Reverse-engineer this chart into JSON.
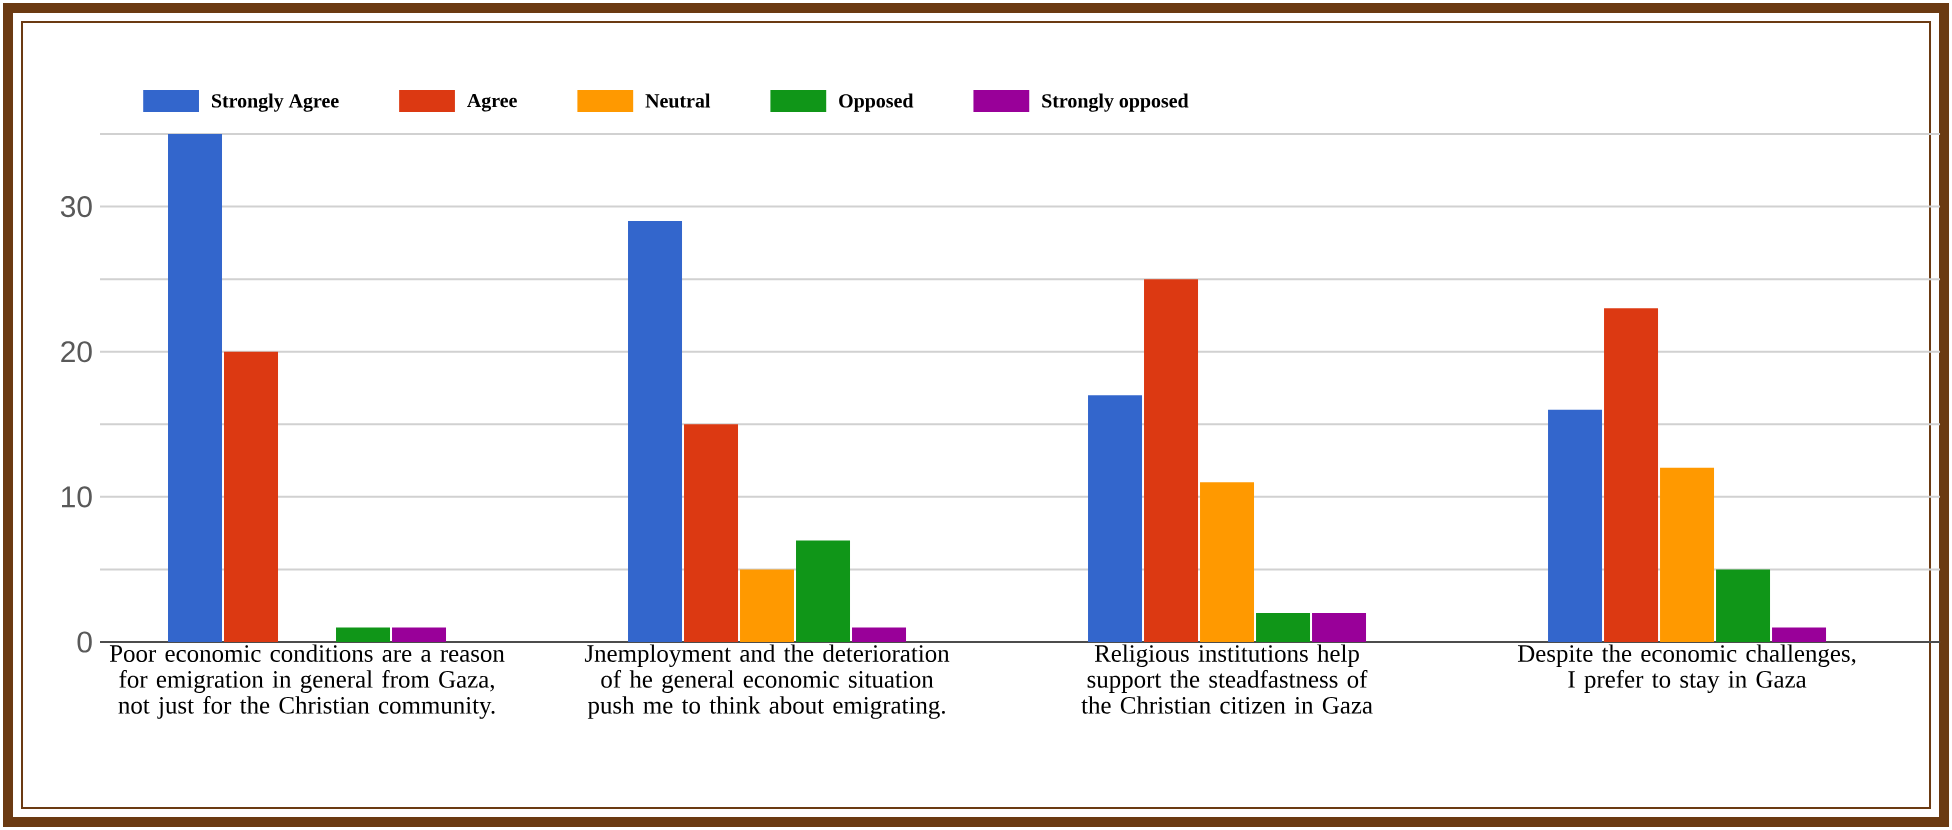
{
  "chart_data": {
    "type": "bar",
    "categories": [
      "Poor economic conditions are a reason for emigration in general from Gaza, not just for the Christian community.",
      "Jnemployment and the deterioration of he general economic situation push me to think about emigrating.",
      "Religious institutions help support the steadfastness of the Christian citizen in Gaza",
      "Despite the economic challenges, I prefer to stay in Gaza"
    ],
    "series": [
      {
        "name": "Strongly  Agree",
        "color": "#3366cc",
        "values": [
          35,
          29,
          17,
          16
        ]
      },
      {
        "name": "Agree",
        "color": "#dc3912",
        "values": [
          20,
          15,
          25,
          23
        ]
      },
      {
        "name": "Neutral",
        "color": "#ff9900",
        "values": [
          0,
          5,
          11,
          12
        ]
      },
      {
        "name": "Opposed",
        "color": "#109618",
        "values": [
          1,
          7,
          2,
          5
        ]
      },
      {
        "name": "Strongly  opposed",
        "color": "#990099",
        "values": [
          1,
          1,
          2,
          1
        ]
      }
    ],
    "ylim": [
      0,
      35
    ],
    "yticks": [
      0,
      {
        "value": 5,
        "label": null
      },
      10,
      {
        "value": 15,
        "label": null
      },
      20,
      {
        "value": 25,
        "label": null
      },
      30,
      {
        "value": 35,
        "label": null
      }
    ],
    "grid": "y",
    "legend": "top left"
  }
}
